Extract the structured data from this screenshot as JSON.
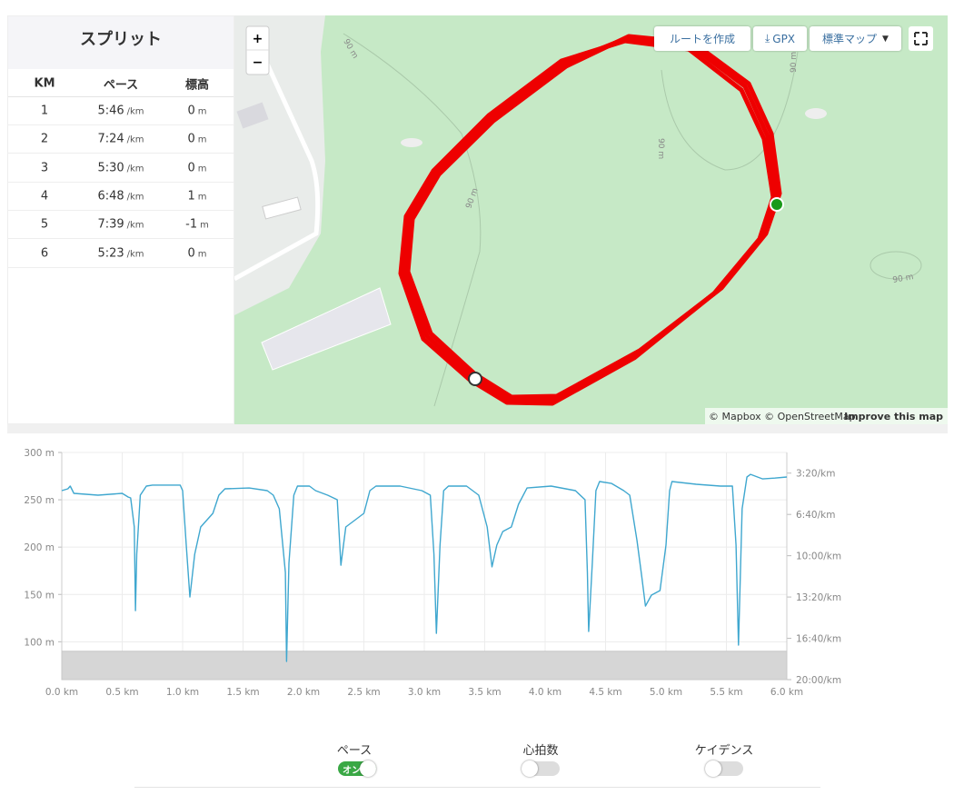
{
  "splits": {
    "title": "スプリット",
    "headers": [
      "KM",
      "ペース",
      "標高"
    ],
    "rows": [
      {
        "km": 1,
        "pace": "5:46",
        "pace_unit": "/km",
        "elevation": 0,
        "elevation_unit": "m"
      },
      {
        "km": 2,
        "pace": "7:24",
        "pace_unit": "/km",
        "elevation": 0,
        "elevation_unit": "m"
      },
      {
        "km": 3,
        "pace": "5:30",
        "pace_unit": "/km",
        "elevation": 0,
        "elevation_unit": "m"
      },
      {
        "km": 4,
        "pace": "6:48",
        "pace_unit": "/km",
        "elevation": 1,
        "elevation_unit": "m"
      },
      {
        "km": 5,
        "pace": "7:39",
        "pace_unit": "/km",
        "elevation": -1,
        "elevation_unit": "m"
      },
      {
        "km": 6,
        "pace": "5:23",
        "pace_unit": "/km",
        "elevation": 0,
        "elevation_unit": "m"
      }
    ]
  },
  "map": {
    "zoom_in": "+",
    "zoom_out": "−",
    "buttons": [
      "ルートを作成",
      "GPX",
      "標準マップ"
    ],
    "contour_labels": [
      "90 m",
      "90 m",
      "90 m",
      "90 m",
      "90 m"
    ],
    "attribution": "© Mapbox © OpenStreetMap",
    "improve_link": "Improve this map"
  },
  "chart_data": {
    "type": "line",
    "x": [
      0,
      0.05,
      0.07,
      0.1,
      0.3,
      0.5,
      0.55,
      0.57,
      0.6,
      0.61,
      0.62,
      0.65,
      0.7,
      0.75,
      0.98,
      1.0,
      1.03,
      1.06,
      1.1,
      1.15,
      1.25,
      1.3,
      1.35,
      1.55,
      1.7,
      1.75,
      1.8,
      1.85,
      1.86,
      1.88,
      1.92,
      1.95,
      2.05,
      2.1,
      2.2,
      2.28,
      2.31,
      2.35,
      2.45,
      2.5,
      2.55,
      2.6,
      2.8,
      2.98,
      3.05,
      3.08,
      3.1,
      3.13,
      3.16,
      3.2,
      3.35,
      3.45,
      3.52,
      3.56,
      3.6,
      3.65,
      3.72,
      3.78,
      3.85,
      4.05,
      4.25,
      4.33,
      4.35,
      4.36,
      4.39,
      4.42,
      4.45,
      4.55,
      4.65,
      4.7,
      4.76,
      4.8,
      4.83,
      4.88,
      4.95,
      5.0,
      5.03,
      5.05,
      5.25,
      5.45,
      5.55,
      5.58,
      5.6,
      5.63,
      5.67,
      5.7,
      5.8,
      5.9,
      6.0
    ],
    "series": [
      {
        "color": "#d6d6d6",
        "fill": true,
        "values": [
          90,
          90,
          90,
          90,
          90,
          90,
          90,
          90,
          90,
          90,
          90,
          90,
          90,
          90,
          90,
          90,
          90,
          90,
          90,
          90,
          90,
          90,
          90,
          90,
          90,
          90,
          90,
          90,
          90,
          90,
          90,
          90,
          90,
          90,
          90,
          90,
          90,
          90,
          90,
          90,
          90,
          90,
          90,
          90,
          90,
          90,
          90,
          90,
          90,
          90,
          90,
          90,
          90,
          90,
          90,
          90,
          90,
          90,
          90,
          90,
          90,
          90,
          90,
          90,
          90,
          90,
          90,
          90,
          90,
          90,
          90,
          90,
          90,
          90,
          90,
          90,
          90,
          90,
          90,
          90,
          90,
          90,
          90,
          90,
          90,
          90,
          90,
          90,
          90
        ]
      },
      {
        "name": "ペース",
        "color": "#3fa7cf",
        "axis": "y2",
        "values": [
          285,
          276,
          263,
          298,
          307,
          298,
          316,
          320,
          461,
          866,
          593,
          307,
          263,
          258,
          258,
          285,
          549,
          800,
          593,
          461,
          395,
          307,
          276,
          272,
          285,
          307,
          373,
          681,
          1112,
          637,
          307,
          263,
          263,
          285,
          307,
          329,
          646,
          461,
          417,
          395,
          285,
          263,
          263,
          285,
          307,
          593,
          976,
          549,
          285,
          263,
          263,
          307,
          461,
          654,
          549,
          483,
          461,
          351,
          272,
          263,
          285,
          329,
          681,
          967,
          637,
          285,
          241,
          250,
          285,
          307,
          527,
          703,
          844,
          791,
          769,
          549,
          285,
          241,
          254,
          263,
          263,
          549,
          1033,
          373,
          219,
          206,
          228,
          224,
          219
        ]
      }
    ],
    "xlim": [
      0,
      6
    ],
    "xticks": [
      {
        "value": 0,
        "label": "0.0 km"
      },
      {
        "value": 0.5,
        "label": "0.5 km"
      },
      {
        "value": 1,
        "label": "1.0 km"
      },
      {
        "value": 1.5,
        "label": "1.5 km"
      },
      {
        "value": 2,
        "label": "2.0 km"
      },
      {
        "value": 2.5,
        "label": "2.5 km"
      },
      {
        "value": 3,
        "label": "3.0 km"
      },
      {
        "value": 3.5,
        "label": "3.5 km"
      },
      {
        "value": 4,
        "label": "4.0 km"
      },
      {
        "value": 4.5,
        "label": "4.5 km"
      },
      {
        "value": 5,
        "label": "5.0 km"
      },
      {
        "value": 5.5,
        "label": "5.5 km"
      },
      {
        "value": 6,
        "label": "6.0 km"
      }
    ],
    "ylim": [
      60,
      300
    ],
    "yticks": [
      {
        "value": 100,
        "label": "100 m"
      },
      {
        "value": 150,
        "label": "150 m"
      },
      {
        "value": 200,
        "label": "200 m"
      },
      {
        "value": 250,
        "label": "250 m"
      },
      {
        "value": 300,
        "label": "300 m"
      }
    ],
    "y2lim": [
      1200,
      100
    ],
    "y2ticks": [
      {
        "value": 200,
        "label": "3:20/km"
      },
      {
        "value": 400,
        "label": "6:40/km"
      },
      {
        "value": 600,
        "label": "10:00/km"
      },
      {
        "value": 800,
        "label": "13:20/km"
      },
      {
        "value": 1000,
        "label": "16:40/km"
      },
      {
        "value": 1200,
        "label": "20:00/km"
      }
    ],
    "grid": true
  },
  "toggles": {
    "pace_state": "オン",
    "others": [
      "心拍数",
      "ケイデンス"
    ]
  }
}
